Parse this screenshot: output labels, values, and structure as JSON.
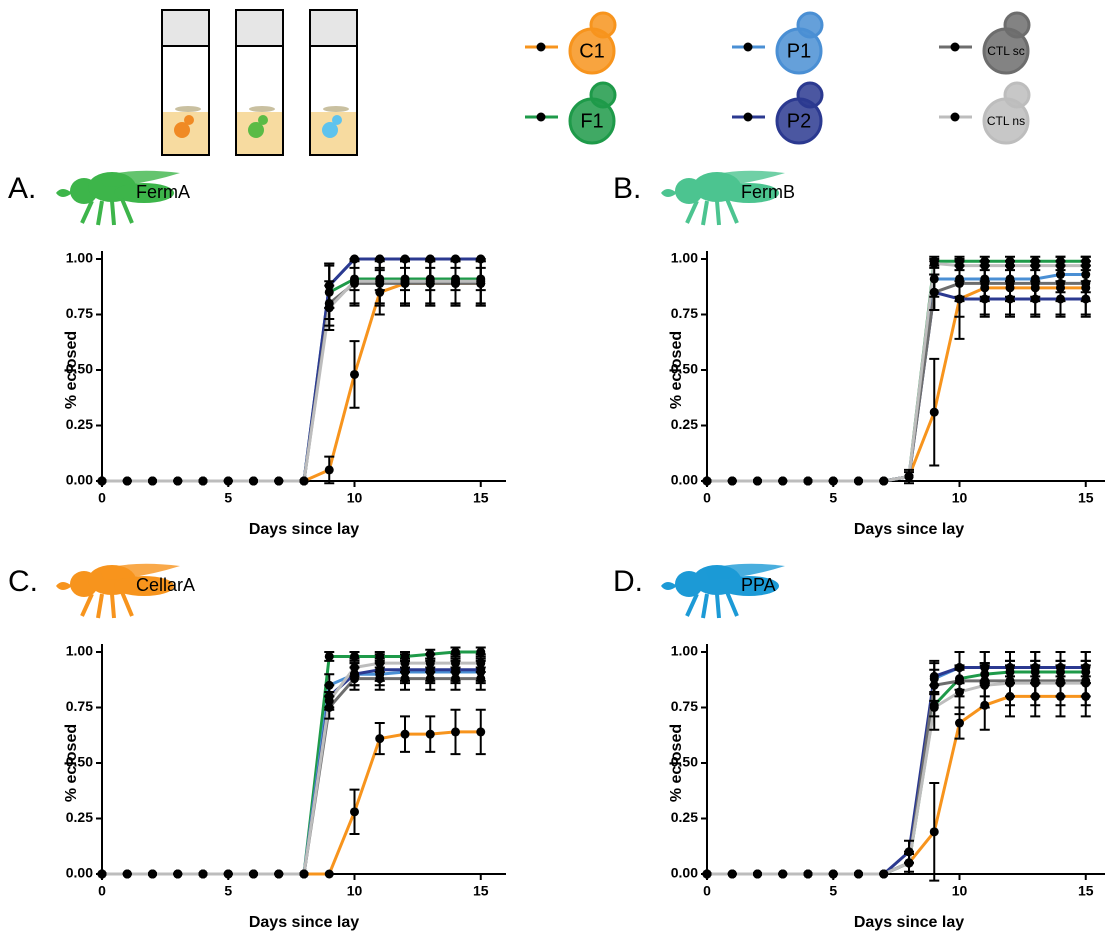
{
  "legend": [
    {
      "name": "C1",
      "color": "#f7941d"
    },
    {
      "name": "F1",
      "color": "#1e9a49"
    },
    {
      "name": "P1",
      "color": "#4a8fd4"
    },
    {
      "name": "P2",
      "color": "#2b3990"
    },
    {
      "name": "CTL sc",
      "color": "#6d6d6d"
    },
    {
      "name": "CTL ns",
      "color": "#bdbdbd"
    }
  ],
  "chart_data": [
    {
      "type": "line",
      "panel": "A.",
      "strain": "FermA",
      "x_label": "Days since lay",
      "y_label": "% eclosed",
      "x": [
        0,
        1,
        2,
        3,
        4,
        5,
        6,
        7,
        8,
        9,
        10,
        11,
        12,
        13,
        14,
        15
      ],
      "xlim": [
        0,
        16
      ],
      "xticks": [
        0,
        5,
        10,
        15
      ],
      "ylim": [
        0,
        1
      ],
      "yticks": [
        {
          "value": 0,
          "label": "0.00"
        },
        {
          "value": 0.25,
          "label": "0.25"
        },
        {
          "value": 0.5,
          "label": "0.50"
        },
        {
          "value": 0.75,
          "label": "0.75"
        },
        {
          "value": 1,
          "label": "1.00"
        }
      ],
      "series": [
        {
          "values": [
            0,
            0,
            0,
            0,
            0,
            0,
            0,
            0,
            0,
            0.05,
            0.48,
            0.85,
            0.89,
            0.89,
            0.89,
            0.89
          ],
          "errors": [
            0,
            0,
            0,
            0,
            0,
            0,
            0,
            0,
            0,
            0.06,
            0.15,
            0.1,
            0.1,
            0.1,
            0.1,
            0.1
          ]
        },
        {
          "values": [
            0,
            0,
            0,
            0,
            0,
            0,
            0,
            0,
            0,
            0.85,
            0.91,
            0.91,
            0.91,
            0.91,
            0.91,
            0.91
          ],
          "errors": [
            0,
            0,
            0,
            0,
            0,
            0,
            0,
            0,
            0,
            0.12,
            0.05,
            0.05,
            0.05,
            0.05,
            0.05,
            0.05
          ]
        },
        {
          "values": [
            0,
            0,
            0,
            0,
            0,
            0,
            0,
            0,
            0,
            0.88,
            1,
            1,
            1,
            1,
            1,
            1
          ],
          "errors": [
            0,
            0,
            0,
            0,
            0,
            0,
            0,
            0,
            0,
            0.1,
            0,
            0,
            0,
            0,
            0,
            0
          ]
        },
        {
          "values": [
            0,
            0,
            0,
            0,
            0,
            0,
            0,
            0,
            0,
            0.88,
            1,
            1,
            1,
            1,
            1,
            1
          ],
          "errors": [
            0,
            0,
            0,
            0,
            0,
            0,
            0,
            0,
            0,
            0.1,
            0,
            0,
            0,
            0,
            0,
            0
          ]
        },
        {
          "values": [
            0,
            0,
            0,
            0,
            0,
            0,
            0,
            0,
            0,
            0.8,
            0.89,
            0.89,
            0.89,
            0.89,
            0.89,
            0.89
          ],
          "errors": [
            0,
            0,
            0,
            0,
            0,
            0,
            0,
            0,
            0,
            0.1,
            0.1,
            0.1,
            0.1,
            0.1,
            0.1,
            0.1
          ]
        },
        {
          "values": [
            0,
            0,
            0,
            0,
            0,
            0,
            0,
            0,
            0,
            0.78,
            0.9,
            0.9,
            0.9,
            0.9,
            0.9,
            0.9
          ],
          "errors": [
            0,
            0,
            0,
            0,
            0,
            0,
            0,
            0,
            0,
            0.1,
            0.1,
            0.1,
            0.1,
            0.1,
            0.1,
            0.1
          ]
        }
      ]
    },
    {
      "type": "line",
      "panel": "B.",
      "strain": "FermB",
      "x_label": "Days since lay",
      "y_label": "% eclosed",
      "x": [
        0,
        1,
        2,
        3,
        4,
        5,
        6,
        7,
        8,
        9,
        10,
        11,
        12,
        13,
        14,
        15
      ],
      "xlim": [
        0,
        16
      ],
      "xticks": [
        0,
        5,
        10,
        15
      ],
      "ylim": [
        0,
        1
      ],
      "yticks": [
        {
          "value": 0,
          "label": "0.00"
        },
        {
          "value": 0.25,
          "label": "0.25"
        },
        {
          "value": 0.5,
          "label": "0.50"
        },
        {
          "value": 0.75,
          "label": "0.75"
        },
        {
          "value": 1,
          "label": "1.00"
        }
      ],
      "series": [
        {
          "values": [
            0,
            0,
            0,
            0,
            0,
            0,
            0,
            0,
            0.02,
            0.31,
            0.82,
            0.87,
            0.87,
            0.87,
            0.87,
            0.87
          ],
          "errors": [
            0,
            0,
            0,
            0,
            0,
            0,
            0,
            0,
            0.03,
            0.24,
            0.18,
            0.12,
            0.12,
            0.12,
            0.12,
            0.12
          ]
        },
        {
          "values": [
            0,
            0,
            0,
            0,
            0,
            0,
            0,
            0,
            0.02,
            0.99,
            0.99,
            0.99,
            0.99,
            0.99,
            0.99,
            0.99
          ],
          "errors": [
            0,
            0,
            0,
            0,
            0,
            0,
            0,
            0,
            0.02,
            0.02,
            0.02,
            0.02,
            0.02,
            0.02,
            0.02,
            0.02
          ]
        },
        {
          "values": [
            0,
            0,
            0,
            0,
            0,
            0,
            0,
            0,
            0.02,
            0.91,
            0.91,
            0.91,
            0.91,
            0.91,
            0.93,
            0.93
          ],
          "errors": [
            0,
            0,
            0,
            0,
            0,
            0,
            0,
            0,
            0,
            0.08,
            0.08,
            0.08,
            0.08,
            0.08,
            0.08,
            0.08
          ]
        },
        {
          "values": [
            0,
            0,
            0,
            0,
            0,
            0,
            0,
            0,
            0.02,
            0.85,
            0.82,
            0.82,
            0.82,
            0.82,
            0.82,
            0.82
          ],
          "errors": [
            0,
            0,
            0,
            0,
            0,
            0,
            0,
            0,
            0,
            0.08,
            0.08,
            0.08,
            0.08,
            0.08,
            0.08,
            0.08
          ]
        },
        {
          "values": [
            0,
            0,
            0,
            0,
            0,
            0,
            0,
            0,
            0.02,
            0.85,
            0.89,
            0.89,
            0.89,
            0.89,
            0.89,
            0.89
          ],
          "errors": [
            0,
            0,
            0,
            0,
            0,
            0,
            0,
            0,
            0,
            0.08,
            0.08,
            0.08,
            0.08,
            0.08,
            0.08,
            0.08
          ]
        },
        {
          "values": [
            0,
            0,
            0,
            0,
            0,
            0,
            0,
            0,
            0.02,
            0.98,
            0.97,
            0.97,
            0.97,
            0.97,
            0.97,
            0.97
          ],
          "errors": [
            0,
            0,
            0,
            0,
            0,
            0,
            0,
            0,
            0,
            0.02,
            0.02,
            0.02,
            0.02,
            0.02,
            0.02,
            0.02
          ]
        }
      ]
    },
    {
      "type": "line",
      "panel": "C.",
      "strain": "CellarA",
      "x_label": "Days since lay",
      "y_label": "% eclosed",
      "x": [
        0,
        1,
        2,
        3,
        4,
        5,
        6,
        7,
        8,
        9,
        10,
        11,
        12,
        13,
        14,
        15
      ],
      "xlim": [
        0,
        16
      ],
      "xticks": [
        0,
        5,
        10,
        15
      ],
      "ylim": [
        0,
        1
      ],
      "yticks": [
        {
          "value": 0,
          "label": "0.00"
        },
        {
          "value": 0.25,
          "label": "0.25"
        },
        {
          "value": 0.5,
          "label": "0.50"
        },
        {
          "value": 0.75,
          "label": "0.75"
        },
        {
          "value": 1,
          "label": "1.00"
        }
      ],
      "series": [
        {
          "values": [
            0,
            0,
            0,
            0,
            0,
            0,
            0,
            0,
            0,
            0,
            0.28,
            0.61,
            0.63,
            0.63,
            0.64,
            0.64
          ],
          "errors": [
            0,
            0,
            0,
            0,
            0,
            0,
            0,
            0,
            0,
            0,
            0.1,
            0.07,
            0.08,
            0.08,
            0.1,
            0.1
          ]
        },
        {
          "values": [
            0,
            0,
            0,
            0,
            0,
            0,
            0,
            0,
            0,
            0.98,
            0.98,
            0.98,
            0.98,
            0.99,
            1,
            1
          ],
          "errors": [
            0,
            0,
            0,
            0,
            0,
            0,
            0,
            0,
            0,
            0.02,
            0.02,
            0.02,
            0.02,
            0.02,
            0.02,
            0.02
          ]
        },
        {
          "values": [
            0,
            0,
            0,
            0,
            0,
            0,
            0,
            0,
            0,
            0.85,
            0.9,
            0.9,
            0.91,
            0.91,
            0.91,
            0.91
          ],
          "errors": [
            0,
            0,
            0,
            0,
            0,
            0,
            0,
            0,
            0,
            0.05,
            0.05,
            0.05,
            0.05,
            0.05,
            0.05,
            0.05
          ]
        },
        {
          "values": [
            0,
            0,
            0,
            0,
            0,
            0,
            0,
            0,
            0,
            0.8,
            0.9,
            0.92,
            0.92,
            0.92,
            0.92,
            0.92
          ],
          "errors": [
            0,
            0,
            0,
            0,
            0,
            0,
            0,
            0,
            0,
            0.05,
            0.05,
            0.05,
            0.05,
            0.05,
            0.05,
            0.05
          ]
        },
        {
          "values": [
            0,
            0,
            0,
            0,
            0,
            0,
            0,
            0,
            0,
            0.75,
            0.88,
            0.88,
            0.88,
            0.88,
            0.88,
            0.88
          ],
          "errors": [
            0,
            0,
            0,
            0,
            0,
            0,
            0,
            0,
            0,
            0.05,
            0.05,
            0.05,
            0.05,
            0.05,
            0.05,
            0.05
          ]
        },
        {
          "values": [
            0,
            0,
            0,
            0,
            0,
            0,
            0,
            0,
            0,
            0.78,
            0.93,
            0.95,
            0.95,
            0.95,
            0.95,
            0.95
          ],
          "errors": [
            0,
            0,
            0,
            0,
            0,
            0,
            0,
            0,
            0,
            0.04,
            0.04,
            0.04,
            0.04,
            0.04,
            0.04,
            0.04
          ]
        }
      ]
    },
    {
      "type": "line",
      "panel": "D.",
      "strain": "PPA",
      "x_label": "Days since lay",
      "y_label": "% eclosed",
      "x": [
        0,
        1,
        2,
        3,
        4,
        5,
        6,
        7,
        8,
        9,
        10,
        11,
        12,
        13,
        14,
        15
      ],
      "xlim": [
        0,
        16
      ],
      "xticks": [
        0,
        5,
        10,
        15
      ],
      "ylim": [
        0,
        1
      ],
      "yticks": [
        {
          "value": 0,
          "label": "0.00"
        },
        {
          "value": 0.25,
          "label": "0.25"
        },
        {
          "value": 0.5,
          "label": "0.50"
        },
        {
          "value": 0.75,
          "label": "0.75"
        },
        {
          "value": 1,
          "label": "1.00"
        }
      ],
      "series": [
        {
          "values": [
            0,
            0,
            0,
            0,
            0,
            0,
            0,
            0,
            0.05,
            0.19,
            0.68,
            0.76,
            0.8,
            0.8,
            0.8,
            0.8
          ],
          "errors": [
            0,
            0,
            0,
            0,
            0,
            0,
            0,
            0,
            0.05,
            0.22,
            0.07,
            0.11,
            0.09,
            0.09,
            0.09,
            0.09
          ]
        },
        {
          "values": [
            0,
            0,
            0,
            0,
            0,
            0,
            0,
            0,
            0.05,
            0.76,
            0.88,
            0.9,
            0.91,
            0.91,
            0.91,
            0.91
          ],
          "errors": [
            0,
            0,
            0,
            0,
            0,
            0,
            0,
            0,
            0.04,
            0.05,
            0.05,
            0.05,
            0.05,
            0.05,
            0.05,
            0.05
          ]
        },
        {
          "values": [
            0,
            0,
            0,
            0,
            0,
            0,
            0,
            0,
            0.05,
            0.88,
            0.93,
            0.93,
            0.93,
            0.93,
            0.93,
            0.93
          ],
          "errors": [
            0,
            0,
            0,
            0,
            0,
            0,
            0,
            0,
            0,
            0.07,
            0.07,
            0.07,
            0.07,
            0.07,
            0.07,
            0.07
          ]
        },
        {
          "values": [
            0,
            0,
            0,
            0,
            0,
            0,
            0,
            0,
            0.1,
            0.89,
            0.93,
            0.93,
            0.93,
            0.93,
            0.93,
            0.93
          ],
          "errors": [
            0,
            0,
            0,
            0,
            0,
            0,
            0,
            0,
            0.05,
            0.07,
            0.07,
            0.07,
            0.07,
            0.07,
            0.07,
            0.07
          ]
        },
        {
          "values": [
            0,
            0,
            0,
            0,
            0,
            0,
            0,
            0,
            0.05,
            0.85,
            0.87,
            0.87,
            0.87,
            0.87,
            0.87,
            0.87
          ],
          "errors": [
            0,
            0,
            0,
            0,
            0,
            0,
            0,
            0,
            0,
            0.07,
            0.07,
            0.07,
            0.07,
            0.07,
            0.07,
            0.07
          ]
        },
        {
          "values": [
            0,
            0,
            0,
            0,
            0,
            0,
            0,
            0,
            0.05,
            0.75,
            0.82,
            0.85,
            0.86,
            0.86,
            0.86,
            0.86
          ],
          "errors": [
            0,
            0,
            0,
            0,
            0,
            0,
            0,
            0,
            0,
            0.1,
            0.1,
            0.1,
            0.1,
            0.1,
            0.1,
            0.1
          ]
        }
      ]
    }
  ]
}
